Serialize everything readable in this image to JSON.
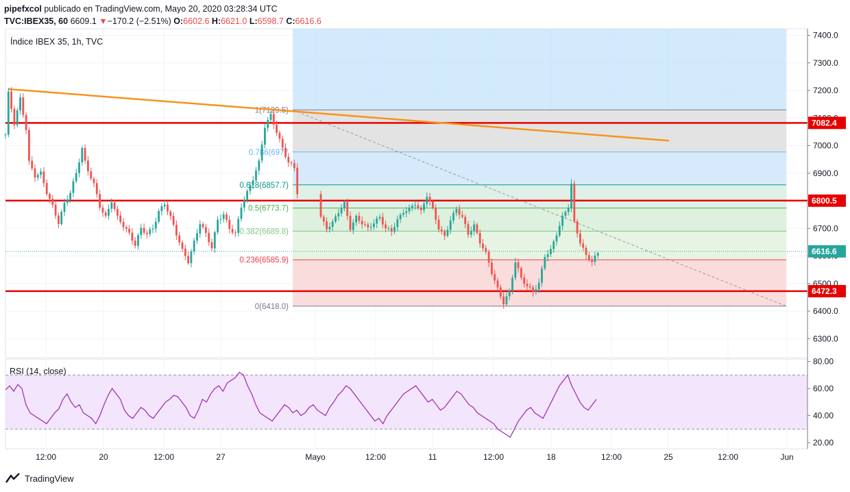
{
  "header": {
    "author": "pipefxcol",
    "published": "publicado en TradingView.com, Mayo 20, 2020 03:28:34 UTC",
    "symbol": "TVC:IBEX35, 60",
    "last": "6609.1",
    "change": "−170.2 (−2.51%)",
    "o_label": "O:",
    "o_value": "6602.6",
    "h_label": "H:",
    "h_value": "6621.0",
    "l_label": "L:",
    "l_value": "6598.7",
    "c_label": "C:",
    "c_value": "6616.6"
  },
  "footer": {
    "brand": "TradingView"
  },
  "chart_data": {
    "type": "candlestick",
    "title": "Índice IBEX 35, 1h, TVC",
    "y_axis": {
      "range": [
        6200,
        7430
      ],
      "ticks": [
        "7400.0",
        "7300.0",
        "7200.0",
        "7100.0",
        "7000.0",
        "6900.0",
        "6800.0",
        "6700.0",
        "6600.0",
        "6500.0",
        "6400.0",
        "6300.0"
      ]
    },
    "x_ticks": [
      "12:00",
      "20",
      "12:00",
      "27",
      "Mayo",
      "12:00",
      "11",
      "12:00",
      "18",
      "12:00",
      "25",
      "12:00",
      "Jun"
    ],
    "horizontal_levels": [
      {
        "value": 7082.4,
        "label": "7082.4",
        "color": "#e60000"
      },
      {
        "value": 6800.5,
        "label": "6800.5",
        "color": "#e60000"
      },
      {
        "value": 6472.3,
        "label": "6472.3",
        "color": "#e60000"
      }
    ],
    "last_price": {
      "value": 6616.6,
      "label": "6616.6",
      "color": "#26a69a"
    },
    "trendline": {
      "from": [
        "Apr 14",
        7205
      ],
      "to": [
        "May 25",
        7018
      ],
      "color": "#f7931a"
    },
    "fib_retracement": {
      "levels": [
        {
          "ratio": "1",
          "value": 7129.5,
          "label": "1(7129.5)",
          "color": "#787b86"
        },
        {
          "ratio": "0.786",
          "value": 6977,
          "label": "0.786(6977",
          "color": "#64b5f6"
        },
        {
          "ratio": "0.618",
          "value": 6857.7,
          "label": "0.618(6857.7)",
          "color": "#089981"
        },
        {
          "ratio": "0.5",
          "value": 6773.7,
          "label": "0.5(6773.7)",
          "color": "#4caf50"
        },
        {
          "ratio": "0.382",
          "value": 6689.8,
          "label": "0.382(6689.8)",
          "color": "#81c784"
        },
        {
          "ratio": "0.236",
          "value": 6585.9,
          "label": "0.236(6585.9)",
          "color": "#f23645"
        },
        {
          "ratio": "0",
          "value": 6418.0,
          "label": "0(6418.0)",
          "color": "#787b86"
        }
      ],
      "extension_zone_color": "#bbdefb"
    },
    "candles_path": [
      [
        0,
        7040
      ],
      [
        1,
        7190
      ],
      [
        3,
        7080
      ],
      [
        5,
        7170
      ],
      [
        7,
        7060
      ],
      [
        8,
        6940
      ],
      [
        10,
        6890
      ],
      [
        12,
        6900
      ],
      [
        14,
        6830
      ],
      [
        16,
        6780
      ],
      [
        18,
        6720
      ],
      [
        20,
        6790
      ],
      [
        22,
        6830
      ],
      [
        24,
        6900
      ],
      [
        26,
        6990
      ],
      [
        27,
        6940
      ],
      [
        28,
        6910
      ],
      [
        30,
        6860
      ],
      [
        32,
        6780
      ],
      [
        34,
        6740
      ],
      [
        36,
        6800
      ],
      [
        38,
        6740
      ],
      [
        40,
        6710
      ],
      [
        42,
        6680
      ],
      [
        44,
        6640
      ],
      [
        46,
        6700
      ],
      [
        48,
        6680
      ],
      [
        50,
        6700
      ],
      [
        52,
        6760
      ],
      [
        54,
        6790
      ],
      [
        56,
        6740
      ],
      [
        58,
        6680
      ],
      [
        60,
        6620
      ],
      [
        62,
        6580
      ],
      [
        64,
        6650
      ],
      [
        66,
        6720
      ],
      [
        68,
        6680
      ],
      [
        70,
        6630
      ],
      [
        72,
        6730
      ],
      [
        74,
        6750
      ],
      [
        76,
        6700
      ],
      [
        78,
        6680
      ],
      [
        80,
        6780
      ],
      [
        82,
        6830
      ],
      [
        84,
        6880
      ],
      [
        86,
        6940
      ],
      [
        88,
        7070
      ],
      [
        90,
        7110
      ],
      [
        92,
        7050
      ],
      [
        94,
        6990
      ],
      [
        96,
        6940
      ],
      [
        98,
        6920
      ],
      [
        100,
        6740
      ],
      [
        102,
        6700
      ],
      [
        104,
        6720
      ],
      [
        106,
        6760
      ],
      [
        108,
        6790
      ],
      [
        110,
        6700
      ],
      [
        112,
        6740
      ],
      [
        114,
        6720
      ],
      [
        116,
        6700
      ],
      [
        118,
        6720
      ],
      [
        120,
        6740
      ],
      [
        122,
        6700
      ],
      [
        124,
        6690
      ],
      [
        126,
        6730
      ],
      [
        128,
        6760
      ],
      [
        130,
        6770
      ],
      [
        132,
        6790
      ],
      [
        134,
        6760
      ],
      [
        136,
        6820
      ],
      [
        138,
        6770
      ],
      [
        140,
        6700
      ],
      [
        142,
        6670
      ],
      [
        144,
        6730
      ],
      [
        146,
        6770
      ],
      [
        148,
        6740
      ],
      [
        150,
        6680
      ],
      [
        152,
        6710
      ],
      [
        154,
        6650
      ],
      [
        156,
        6610
      ],
      [
        158,
        6540
      ],
      [
        160,
        6480
      ],
      [
        162,
        6430
      ],
      [
        164,
        6470
      ],
      [
        166,
        6580
      ],
      [
        168,
        6520
      ],
      [
        170,
        6490
      ],
      [
        172,
        6470
      ],
      [
        174,
        6500
      ],
      [
        176,
        6600
      ],
      [
        178,
        6620
      ],
      [
        180,
        6680
      ],
      [
        182,
        6740
      ],
      [
        184,
        6780
      ],
      [
        185,
        6860
      ],
      [
        186,
        6720
      ],
      [
        188,
        6650
      ],
      [
        190,
        6600
      ],
      [
        192,
        6580
      ],
      [
        194,
        6610
      ]
    ],
    "rsi": {
      "label": "RSI (14, close)",
      "range": [
        20,
        80
      ],
      "ticks": [
        "80.00",
        "60.00",
        "40.00",
        "20.00"
      ],
      "band": [
        30,
        70
      ],
      "color": "#9c27b0",
      "values": [
        59,
        62,
        58,
        63,
        60,
        48,
        42,
        40,
        38,
        36,
        34,
        38,
        42,
        45,
        52,
        56,
        50,
        46,
        48,
        42,
        40,
        38,
        34,
        40,
        48,
        55,
        60,
        56,
        52,
        44,
        40,
        38,
        42,
        46,
        44,
        40,
        38,
        42,
        46,
        50,
        52,
        55,
        54,
        50,
        46,
        40,
        38,
        44,
        52,
        50,
        56,
        60,
        62,
        58,
        64,
        66,
        68,
        72,
        70,
        62,
        56,
        48,
        42,
        40,
        38,
        36,
        40,
        44,
        48,
        46,
        42,
        44,
        40,
        42,
        46,
        48,
        44,
        42,
        40,
        46,
        50,
        55,
        58,
        62,
        60,
        56,
        52,
        48,
        44,
        40,
        36,
        38,
        34,
        40,
        44,
        48,
        52,
        56,
        58,
        60,
        62,
        58,
        54,
        50,
        52,
        48,
        44,
        46,
        50,
        54,
        58,
        56,
        52,
        48,
        46,
        42,
        40,
        38,
        36,
        34,
        30,
        28,
        26,
        24,
        30,
        36,
        40,
        44,
        46,
        42,
        40,
        38,
        44,
        50,
        56,
        62,
        66,
        70,
        62,
        56,
        50,
        46,
        44,
        48,
        52
      ]
    }
  }
}
